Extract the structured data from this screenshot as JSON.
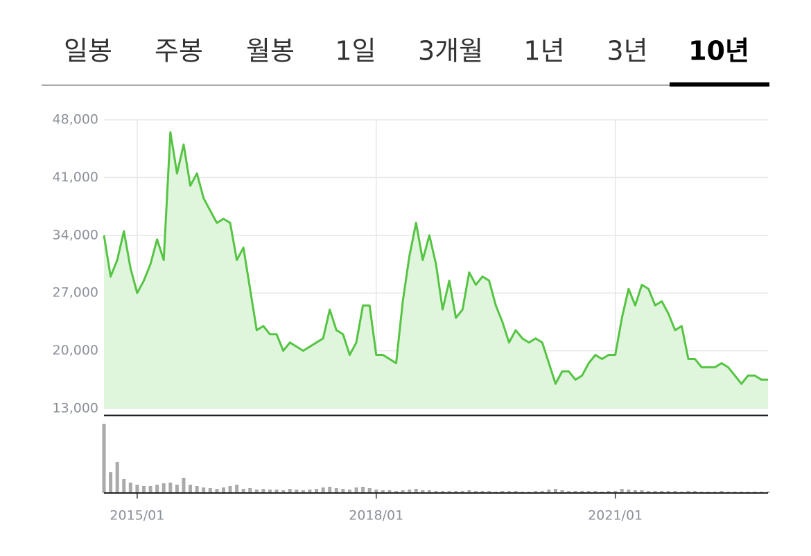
{
  "tabs": [
    "일봉",
    "주봉",
    "월봉",
    "1일",
    "3개월",
    "1년",
    "3년",
    "10년"
  ],
  "selected_tab": 7,
  "chart_data": {
    "type": "area",
    "x": [
      "2014/08",
      "2014/09",
      "2014/10",
      "2014/11",
      "2014/12",
      "2015/01",
      "2015/02",
      "2015/03",
      "2015/04",
      "2015/05",
      "2015/06",
      "2015/07",
      "2015/08",
      "2015/09",
      "2015/10",
      "2015/11",
      "2015/12",
      "2016/01",
      "2016/02",
      "2016/03",
      "2016/04",
      "2016/05",
      "2016/06",
      "2016/07",
      "2016/08",
      "2016/09",
      "2016/10",
      "2016/11",
      "2016/12",
      "2017/01",
      "2017/02",
      "2017/03",
      "2017/04",
      "2017/05",
      "2017/06",
      "2017/07",
      "2017/08",
      "2017/09",
      "2017/10",
      "2017/11",
      "2017/12",
      "2018/01",
      "2018/02",
      "2018/03",
      "2018/04",
      "2018/05",
      "2018/06",
      "2018/07",
      "2018/08",
      "2018/09",
      "2018/10",
      "2018/11",
      "2018/12",
      "2019/01",
      "2019/02",
      "2019/03",
      "2019/04",
      "2019/05",
      "2019/06",
      "2019/07",
      "2019/08",
      "2019/09",
      "2019/10",
      "2019/11",
      "2019/12",
      "2020/01",
      "2020/02",
      "2020/03",
      "2020/04",
      "2020/05",
      "2020/06",
      "2020/07",
      "2020/08",
      "2020/09",
      "2020/10",
      "2020/11",
      "2020/12",
      "2021/01",
      "2021/02",
      "2021/03",
      "2021/04",
      "2021/05",
      "2021/06",
      "2021/07",
      "2021/08",
      "2021/09",
      "2021/10",
      "2021/11",
      "2021/12",
      "2022/01",
      "2022/02",
      "2022/03",
      "2022/04",
      "2022/05",
      "2022/06",
      "2022/07",
      "2022/08",
      "2022/09",
      "2022/10",
      "2022/11",
      "2022/12"
    ],
    "series": [
      {
        "color": "#55c443",
        "fill": "#dff5dc",
        "values": [
          34000,
          29000,
          31000,
          34500,
          30000,
          27000,
          28500,
          30500,
          33500,
          31000,
          46500,
          41500,
          45000,
          40000,
          41500,
          38500,
          37000,
          35500,
          36000,
          35500,
          31000,
          32500,
          27500,
          22500,
          23000,
          22000,
          22000,
          20000,
          21000,
          20500,
          20000,
          20500,
          21000,
          21500,
          25000,
          22500,
          22000,
          19500,
          21000,
          25500,
          25500,
          19500,
          19500,
          19000,
          18500,
          26000,
          31500,
          35500,
          31000,
          34000,
          30500,
          25000,
          28500,
          24000,
          25000,
          29500,
          28000,
          29000,
          28500,
          25500,
          23500,
          21000,
          22500,
          21500,
          21000,
          21500,
          21000,
          18500,
          16000,
          17500,
          17500,
          16500,
          17000,
          18500,
          19500,
          19000,
          19500,
          19500,
          24000,
          27500,
          25500,
          28000,
          27500,
          25500,
          26000,
          24500,
          22500,
          23000,
          19000,
          19000,
          18000,
          18000,
          18000,
          18500,
          18000,
          17000,
          16000,
          17000,
          17000,
          16500,
          16500
        ]
      },
      {
        "color": "#aaaaaa",
        "axis": "y2",
        "values": [
          100,
          30,
          45,
          20,
          15,
          12,
          10,
          10,
          12,
          14,
          15,
          12,
          22,
          12,
          10,
          8,
          7,
          6,
          8,
          10,
          12,
          6,
          7,
          5,
          6,
          5,
          5,
          4,
          6,
          5,
          4,
          5,
          6,
          8,
          9,
          7,
          6,
          5,
          8,
          9,
          7,
          5,
          4,
          4,
          3,
          4,
          5,
          6,
          4,
          4,
          3,
          3,
          3,
          3,
          3,
          4,
          3,
          3,
          3,
          2,
          3,
          3,
          3,
          2,
          2,
          3,
          3,
          5,
          6,
          4,
          3,
          3,
          3,
          3,
          3,
          2,
          3,
          3,
          6,
          5,
          4,
          4,
          3,
          3,
          3,
          3,
          3,
          2,
          3,
          3,
          2,
          2,
          2,
          3,
          2,
          2,
          2,
          2,
          2,
          2,
          2
        ]
      }
    ],
    "ylim": [
      13000,
      48000
    ],
    "yticks": [
      {
        "value": 13000,
        "label": "13,000"
      },
      {
        "value": 20000,
        "label": "20,000"
      },
      {
        "value": 27000,
        "label": "27,000"
      },
      {
        "value": 34000,
        "label": "34,000"
      },
      {
        "value": 41000,
        "label": "41,000"
      },
      {
        "value": 48000,
        "label": "48,000"
      }
    ],
    "y2lim": [
      0,
      100
    ],
    "xticks": [
      "2015/01",
      "2018/01",
      "2021/01"
    ],
    "grid": true
  }
}
